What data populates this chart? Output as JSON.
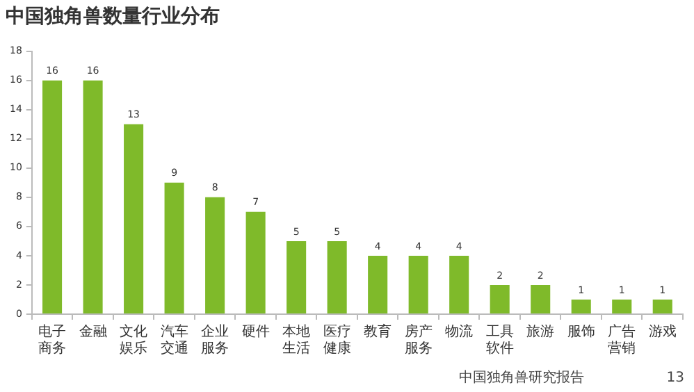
{
  "chart_data": {
    "type": "bar",
    "title": "中国独角兽数量行业分布",
    "categories": [
      "电子商务",
      "金融",
      "文化娱乐",
      "汽车交通",
      "企业服务",
      "硬件",
      "本地生活",
      "医疗健康",
      "教育",
      "房产服务",
      "物流",
      "工具软件",
      "旅游",
      "服饰",
      "广告营销",
      "游戏"
    ],
    "values": [
      16,
      16,
      13,
      9,
      8,
      7,
      5,
      5,
      4,
      4,
      4,
      2,
      2,
      1,
      1,
      1
    ],
    "color": "#7fba2a",
    "ylim": [
      0,
      18
    ],
    "yticks": [
      0,
      2,
      4,
      6,
      8,
      10,
      12,
      14,
      16,
      18
    ],
    "grid": false,
    "legend": false,
    "data_labels": true,
    "annotations": [
      "中国独角兽研究报告",
      "13"
    ]
  }
}
